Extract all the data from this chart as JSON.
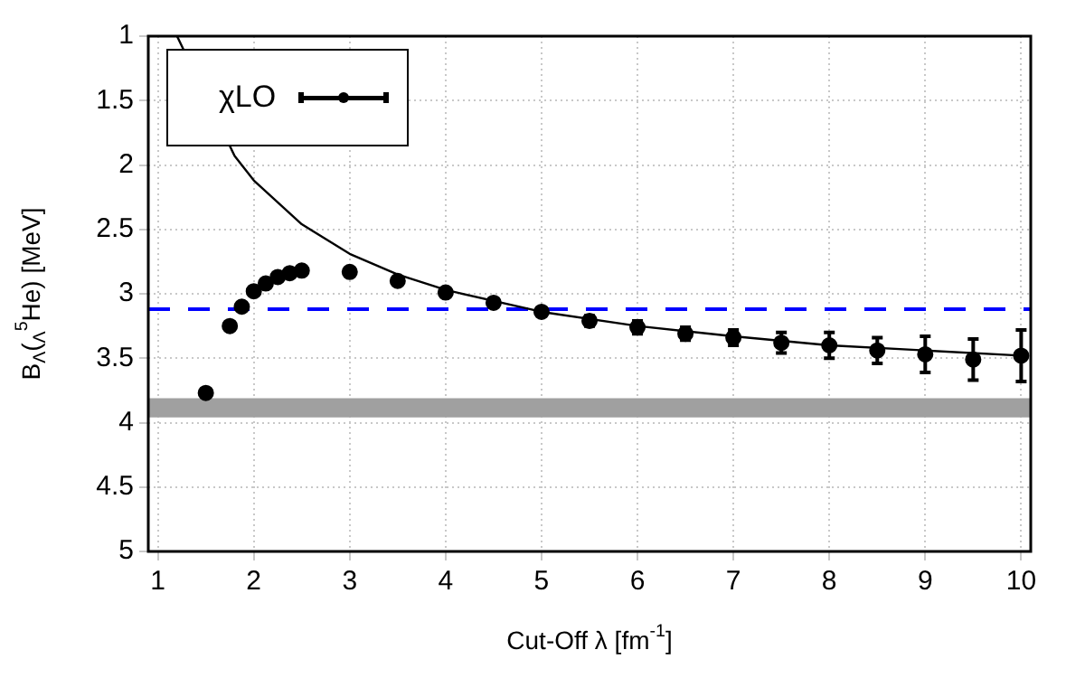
{
  "chart_data": {
    "type": "scatter",
    "xlabel": "Cut-Off λ [fm$^{-1}$]",
    "ylabel": "B$_{Λ}$($_{Λ}$$^{5}$He) [MeV]",
    "xlim": [
      0.9,
      10.1
    ],
    "xticks": [
      1,
      2,
      3,
      4,
      5,
      6,
      7,
      8,
      9,
      10
    ],
    "ylim": [
      5,
      1
    ],
    "yticks": [
      1,
      1.5,
      2,
      2.5,
      3,
      3.5,
      4,
      4.5,
      5
    ],
    "grid": true,
    "legend": "top left",
    "series": [
      {
        "name": "χLO",
        "type": "scatter",
        "color": "#000000",
        "marker": "circle",
        "x": [
          1.5,
          1.75,
          1.875,
          2,
          2.125,
          2.25,
          2.375,
          2.5,
          3,
          3.5,
          4,
          4.5,
          5,
          5.5,
          6,
          6.5,
          7,
          7.5,
          8,
          8.5,
          9,
          9.5,
          10
        ],
        "values": [
          3.77,
          3.25,
          3.1,
          2.98,
          2.92,
          2.87,
          2.84,
          2.82,
          2.83,
          2.9,
          2.99,
          3.07,
          3.14,
          3.21,
          3.26,
          3.31,
          3.34,
          3.38,
          3.4,
          3.44,
          3.47,
          3.51,
          3.48
        ],
        "errors": [
          null,
          null,
          null,
          null,
          null,
          null,
          null,
          null,
          null,
          null,
          null,
          null,
          0.03,
          0.04,
          0.05,
          0.05,
          0.06,
          0.08,
          0.1,
          0.1,
          0.14,
          0.16,
          0.2
        ]
      },
      {
        "type": "line",
        "color": "#000000",
        "marker": "none",
        "line_style": "solid",
        "x": [
          1.2,
          1.4,
          1.6,
          1.8,
          2,
          2.5,
          3,
          3.5,
          4,
          5,
          6,
          7,
          8,
          9,
          10
        ],
        "values": [
          1,
          null,
          null,
          1.93,
          2.12,
          2.46,
          2.69,
          2.85,
          2.97,
          3.14,
          3.25,
          3.33,
          3.4,
          3.44,
          3.48
        ]
      }
    ],
    "ref_lines": [
      {
        "axis": "y",
        "value": 3.12,
        "color": "#0000ff",
        "line_style": "dashed"
      }
    ],
    "bands": [
      {
        "axis": "y",
        "from": 3.81,
        "to": 3.96,
        "color": "#a0a0a0"
      }
    ]
  }
}
